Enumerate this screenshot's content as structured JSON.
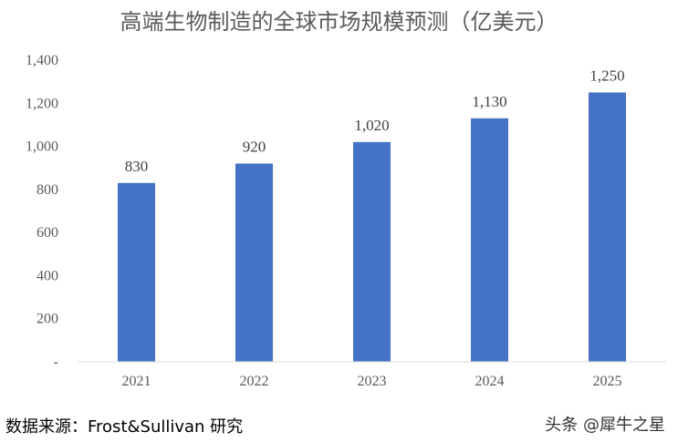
{
  "chart_data": {
    "type": "bar",
    "title": "高端生物制造的全球市场规模预测（亿美元）",
    "categories": [
      "2021",
      "2022",
      "2023",
      "2024",
      "2025"
    ],
    "values": [
      830,
      920,
      1020,
      1130,
      1250
    ],
    "value_labels": [
      "830",
      "920",
      "1,020",
      "1,130",
      "1,250"
    ],
    "ylim": [
      0,
      1400
    ],
    "y_ticks": [
      0,
      200,
      400,
      600,
      800,
      1000,
      1200,
      1400
    ],
    "y_tick_labels": [
      "-",
      "200",
      "400",
      "600",
      "800",
      "1,000",
      "1,200",
      "1,400"
    ],
    "bar_color": "#4472C4",
    "grid": false,
    "legend": "none"
  },
  "source": "数据来源：Frost&Sullivan 研究",
  "watermark": "头条 @犀牛之星"
}
